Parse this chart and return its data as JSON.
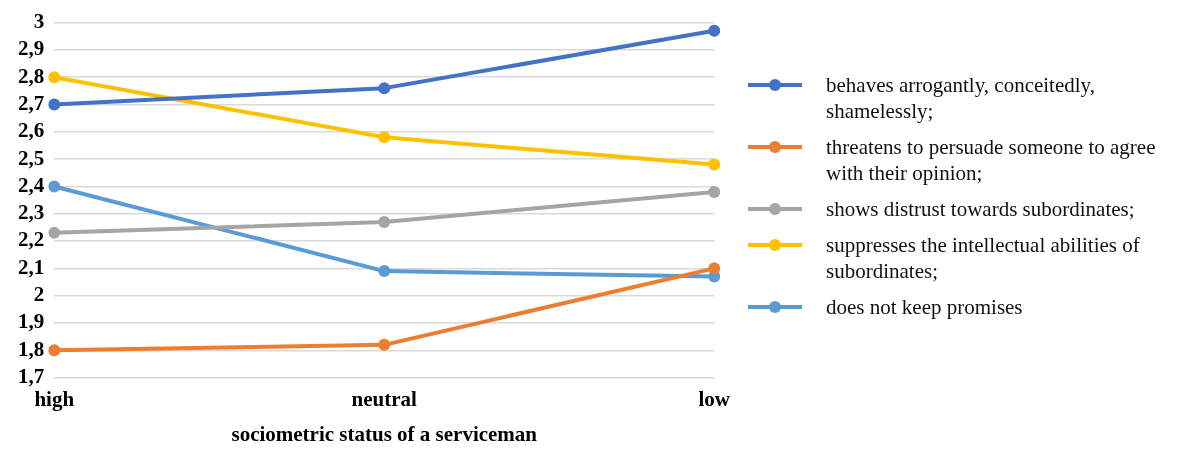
{
  "chart_data": {
    "type": "line",
    "xlabel": "sociometric status of a serviceman",
    "categories": [
      "high",
      "neutral",
      "low"
    ],
    "series": [
      {
        "name": "behaves arrogantly, conceitedly, shamelessly;",
        "color": "#4472c4",
        "values": [
          2.7,
          2.76,
          2.97
        ]
      },
      {
        "name": "threatens to persuade someone to agree with their opinion;",
        "color": "#ed7d31",
        "values": [
          1.8,
          1.82,
          2.1
        ]
      },
      {
        "name": "shows distrust towards subordinates;",
        "color": "#a5a5a5",
        "values": [
          2.23,
          2.27,
          2.38
        ]
      },
      {
        "name": "suppresses the intellectual abilities of subordinates;",
        "color": "#ffc000",
        "values": [
          2.8,
          2.58,
          2.48
        ]
      },
      {
        "name": "does not keep promises",
        "color": "#5b9bd5",
        "values": [
          2.4,
          2.09,
          2.07
        ]
      }
    ],
    "ylim": [
      1.7,
      3
    ],
    "yticks": [
      {
        "value": 1.7,
        "label": "1,7"
      },
      {
        "value": 1.8,
        "label": "1,8"
      },
      {
        "value": 1.9,
        "label": "1,9"
      },
      2,
      {
        "value": 2.1,
        "label": "2,1"
      },
      {
        "value": 2.2,
        "label": "2,2"
      },
      {
        "value": 2.3,
        "label": "2,3"
      },
      {
        "value": 2.4,
        "label": "2,4"
      },
      {
        "value": 2.5,
        "label": "2,5"
      },
      {
        "value": 2.6,
        "label": "2,6"
      },
      {
        "value": 2.7,
        "label": "2,7"
      },
      {
        "value": 2.8,
        "label": "2,8"
      },
      {
        "value": 2.9,
        "label": "2,9"
      },
      3
    ],
    "grid": "y",
    "legend": "right",
    "marker": "circle",
    "line_style": "solid"
  }
}
